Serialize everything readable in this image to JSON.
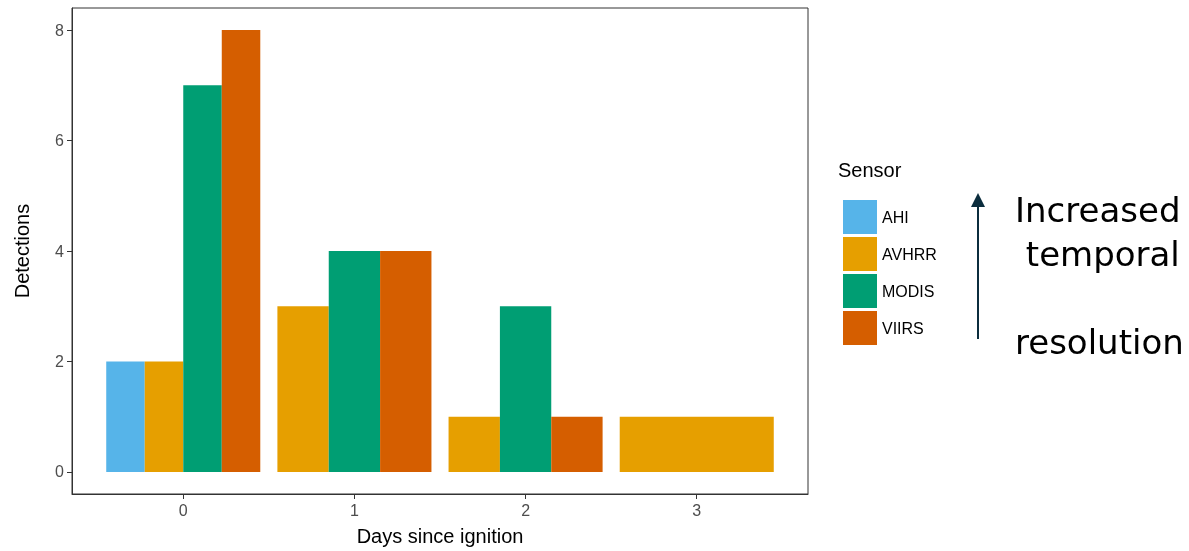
{
  "chart_data": {
    "type": "bar",
    "xlabel": "Days since ignition",
    "ylabel": "Detections",
    "legend_title": "Sensor",
    "legend": "right",
    "grid": false,
    "x": [
      0,
      1,
      2,
      3
    ],
    "xlim": [
      -0.65,
      3.65
    ],
    "xticks": [
      0,
      1,
      2,
      3
    ],
    "ylim": [
      -0.4,
      8.4
    ],
    "yticks": [
      0,
      2,
      4,
      6,
      8
    ],
    "series": [
      {
        "name": "AHI",
        "color": "#56b4e9",
        "values": [
          2,
          null,
          null,
          null
        ]
      },
      {
        "name": "AVHRR",
        "color": "#e69f00",
        "values": [
          2,
          3,
          1,
          1
        ]
      },
      {
        "name": "MODIS",
        "color": "#009e73",
        "values": [
          7,
          4,
          3,
          null
        ]
      },
      {
        "name": "VIIRS",
        "color": "#d55e00",
        "values": [
          8,
          4,
          1,
          null
        ]
      }
    ],
    "annotations": [
      "Increased temporal resolution"
    ]
  }
}
